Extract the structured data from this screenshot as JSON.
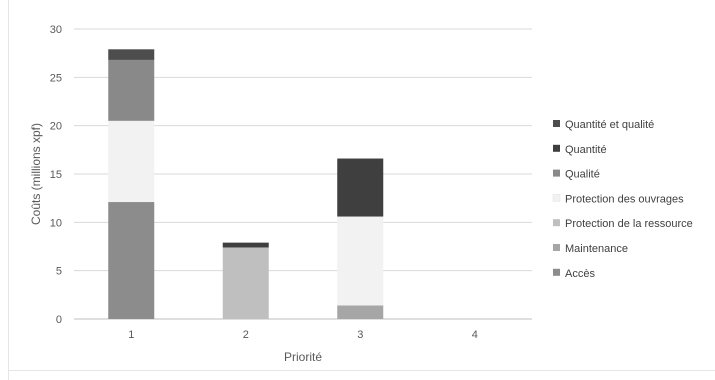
{
  "chart_data": {
    "type": "bar",
    "stacked": true,
    "title": "",
    "xlabel": "Priorité",
    "ylabel": "Coûts (millions xpf)",
    "ylim": [
      0,
      30
    ],
    "yticks": [
      0,
      5,
      10,
      15,
      20,
      25,
      30
    ],
    "categories": [
      "1",
      "2",
      "3",
      "4"
    ],
    "grid": true,
    "legend_position": "right",
    "series": [
      {
        "name": "Accès",
        "color": "#8c8c8c",
        "values": [
          12.1,
          0,
          0,
          0
        ]
      },
      {
        "name": "Maintenance",
        "color": "#a6a6a6",
        "values": [
          0,
          0,
          1.4,
          0
        ]
      },
      {
        "name": "Protection de la ressource",
        "color": "#bfbfbf",
        "values": [
          0,
          7.4,
          0,
          0
        ]
      },
      {
        "name": "Protection des ouvrages",
        "color": "#f2f2f2",
        "values": [
          8.4,
          0,
          9.2,
          0
        ]
      },
      {
        "name": "Qualité",
        "color": "#898989",
        "values": [
          6.3,
          0,
          0,
          0
        ]
      },
      {
        "name": "Quantité",
        "color": "#3f3f3f",
        "values": [
          0,
          0.5,
          6.0,
          0
        ]
      },
      {
        "name": "Quantité et qualité",
        "color": "#4d4d4d",
        "values": [
          1.1,
          0,
          0,
          0
        ]
      }
    ]
  }
}
